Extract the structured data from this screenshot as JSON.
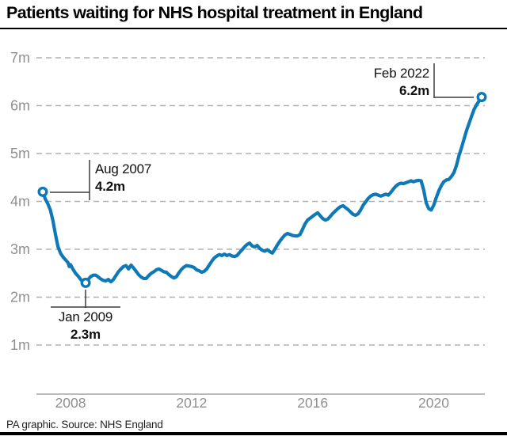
{
  "header": {
    "title": "Patients waiting for NHS hospital treatment in England"
  },
  "footer": {
    "credit": "PA graphic. Source: NHS England"
  },
  "chart_data": {
    "type": "line",
    "title": "Patients waiting for NHS hospital treatment in England",
    "series_name": "Patients waiting for NHS hospital treatment (millions)",
    "unit": "millions of patients",
    "xlabel": "",
    "ylabel": "",
    "grid": true,
    "legend": false,
    "x_domain": [
      2007.583,
      2022.083
    ],
    "y_domain": [
      1,
      7
    ],
    "colors": {
      "line": "#0e79b6",
      "grid": "#b0b0b0",
      "axis": "#a6a6a6",
      "tick_text": "#8f8f8f",
      "annotation_line": "#3c3c3c"
    },
    "y_ticks": [
      {
        "label": "7m",
        "value": 7
      },
      {
        "label": "6m",
        "value": 6
      },
      {
        "label": "5m",
        "value": 5
      },
      {
        "label": "4m",
        "value": 4
      },
      {
        "label": "3m",
        "value": 3
      },
      {
        "label": "2m",
        "value": 2
      },
      {
        "label": "1m",
        "value": 1
      }
    ],
    "x_ticks": [
      {
        "label": "2008",
        "t": 2008.5
      },
      {
        "label": "2012",
        "t": 2012.5
      },
      {
        "label": "2016",
        "t": 2016.5
      },
      {
        "label": "2020",
        "t": 2020.5
      }
    ],
    "annotations": [
      {
        "id": "aug-2007",
        "label": "Aug 2007",
        "value_label": "4.2m",
        "t": 2007.583,
        "value": 4.2
      },
      {
        "id": "jan-2009",
        "label": "Jan 2009",
        "value_label": "2.3m",
        "t": 2009.0,
        "value": 2.3
      },
      {
        "id": "feb-2022",
        "label": "Feb 2022",
        "value_label": "6.2m",
        "t": 2022.083,
        "value": 6.18
      }
    ],
    "points": [
      [
        2007.583,
        4.2
      ],
      [
        2007.667,
        4.05
      ],
      [
        2007.75,
        3.95
      ],
      [
        2007.833,
        3.82
      ],
      [
        2007.917,
        3.6
      ],
      [
        2008.0,
        3.32
      ],
      [
        2008.083,
        3.06
      ],
      [
        2008.167,
        2.92
      ],
      [
        2008.25,
        2.84
      ],
      [
        2008.333,
        2.78
      ],
      [
        2008.417,
        2.72
      ],
      [
        2008.458,
        2.64
      ],
      [
        2008.5,
        2.68
      ],
      [
        2008.583,
        2.58
      ],
      [
        2008.667,
        2.5
      ],
      [
        2008.75,
        2.44
      ],
      [
        2008.833,
        2.37
      ],
      [
        2008.917,
        2.32
      ],
      [
        2009.0,
        2.3
      ],
      [
        2009.083,
        2.37
      ],
      [
        2009.167,
        2.43
      ],
      [
        2009.25,
        2.46
      ],
      [
        2009.333,
        2.46
      ],
      [
        2009.417,
        2.42
      ],
      [
        2009.5,
        2.38
      ],
      [
        2009.583,
        2.35
      ],
      [
        2009.667,
        2.34
      ],
      [
        2009.75,
        2.37
      ],
      [
        2009.833,
        2.32
      ],
      [
        2009.917,
        2.37
      ],
      [
        2010.0,
        2.45
      ],
      [
        2010.083,
        2.53
      ],
      [
        2010.167,
        2.59
      ],
      [
        2010.25,
        2.64
      ],
      [
        2010.333,
        2.66
      ],
      [
        2010.417,
        2.59
      ],
      [
        2010.5,
        2.67
      ],
      [
        2010.583,
        2.61
      ],
      [
        2010.667,
        2.54
      ],
      [
        2010.75,
        2.47
      ],
      [
        2010.833,
        2.42
      ],
      [
        2010.917,
        2.39
      ],
      [
        2011.0,
        2.39
      ],
      [
        2011.083,
        2.45
      ],
      [
        2011.167,
        2.5
      ],
      [
        2011.25,
        2.53
      ],
      [
        2011.333,
        2.57
      ],
      [
        2011.417,
        2.59
      ],
      [
        2011.5,
        2.56
      ],
      [
        2011.583,
        2.53
      ],
      [
        2011.667,
        2.52
      ],
      [
        2011.75,
        2.47
      ],
      [
        2011.833,
        2.43
      ],
      [
        2011.917,
        2.4
      ],
      [
        2012.0,
        2.43
      ],
      [
        2012.083,
        2.51
      ],
      [
        2012.167,
        2.58
      ],
      [
        2012.25,
        2.63
      ],
      [
        2012.333,
        2.66
      ],
      [
        2012.417,
        2.65
      ],
      [
        2012.5,
        2.64
      ],
      [
        2012.583,
        2.62
      ],
      [
        2012.667,
        2.57
      ],
      [
        2012.75,
        2.55
      ],
      [
        2012.833,
        2.52
      ],
      [
        2012.917,
        2.54
      ],
      [
        2013.0,
        2.59
      ],
      [
        2013.083,
        2.67
      ],
      [
        2013.167,
        2.75
      ],
      [
        2013.25,
        2.82
      ],
      [
        2013.333,
        2.86
      ],
      [
        2013.417,
        2.89
      ],
      [
        2013.5,
        2.87
      ],
      [
        2013.583,
        2.9
      ],
      [
        2013.667,
        2.87
      ],
      [
        2013.75,
        2.89
      ],
      [
        2013.833,
        2.86
      ],
      [
        2013.917,
        2.85
      ],
      [
        2014.0,
        2.87
      ],
      [
        2014.083,
        2.93
      ],
      [
        2014.167,
        2.99
      ],
      [
        2014.25,
        3.05
      ],
      [
        2014.333,
        3.1
      ],
      [
        2014.417,
        3.13
      ],
      [
        2014.5,
        3.07
      ],
      [
        2014.583,
        3.05
      ],
      [
        2014.667,
        3.08
      ],
      [
        2014.75,
        3.02
      ],
      [
        2014.833,
        2.98
      ],
      [
        2014.917,
        2.96
      ],
      [
        2015.0,
        2.99
      ],
      [
        2015.083,
        2.95
      ],
      [
        2015.167,
        2.92
      ],
      [
        2015.25,
        3.0
      ],
      [
        2015.333,
        3.09
      ],
      [
        2015.417,
        3.17
      ],
      [
        2015.5,
        3.24
      ],
      [
        2015.583,
        3.3
      ],
      [
        2015.667,
        3.33
      ],
      [
        2015.75,
        3.31
      ],
      [
        2015.833,
        3.29
      ],
      [
        2015.917,
        3.28
      ],
      [
        2016.0,
        3.28
      ],
      [
        2016.083,
        3.31
      ],
      [
        2016.167,
        3.42
      ],
      [
        2016.25,
        3.53
      ],
      [
        2016.333,
        3.61
      ],
      [
        2016.417,
        3.65
      ],
      [
        2016.5,
        3.69
      ],
      [
        2016.583,
        3.73
      ],
      [
        2016.667,
        3.76
      ],
      [
        2016.75,
        3.7
      ],
      [
        2016.833,
        3.64
      ],
      [
        2016.917,
        3.61
      ],
      [
        2017.0,
        3.63
      ],
      [
        2017.083,
        3.69
      ],
      [
        2017.167,
        3.75
      ],
      [
        2017.25,
        3.8
      ],
      [
        2017.333,
        3.85
      ],
      [
        2017.417,
        3.89
      ],
      [
        2017.5,
        3.91
      ],
      [
        2017.583,
        3.87
      ],
      [
        2017.667,
        3.83
      ],
      [
        2017.75,
        3.78
      ],
      [
        2017.833,
        3.73
      ],
      [
        2017.917,
        3.71
      ],
      [
        2018.0,
        3.74
      ],
      [
        2018.083,
        3.82
      ],
      [
        2018.167,
        3.92
      ],
      [
        2018.25,
        3.99
      ],
      [
        2018.333,
        4.06
      ],
      [
        2018.417,
        4.11
      ],
      [
        2018.5,
        4.14
      ],
      [
        2018.583,
        4.15
      ],
      [
        2018.667,
        4.13
      ],
      [
        2018.75,
        4.11
      ],
      [
        2018.833,
        4.13
      ],
      [
        2018.917,
        4.15
      ],
      [
        2019.0,
        4.13
      ],
      [
        2019.083,
        4.19
      ],
      [
        2019.167,
        4.26
      ],
      [
        2019.25,
        4.32
      ],
      [
        2019.333,
        4.36
      ],
      [
        2019.417,
        4.38
      ],
      [
        2019.5,
        4.37
      ],
      [
        2019.583,
        4.39
      ],
      [
        2019.667,
        4.41
      ],
      [
        2019.75,
        4.43
      ],
      [
        2019.833,
        4.41
      ],
      [
        2019.917,
        4.43
      ],
      [
        2020.0,
        4.44
      ],
      [
        2020.083,
        4.43
      ],
      [
        2020.167,
        4.24
      ],
      [
        2020.25,
        3.97
      ],
      [
        2020.333,
        3.85
      ],
      [
        2020.417,
        3.82
      ],
      [
        2020.5,
        3.92
      ],
      [
        2020.583,
        4.08
      ],
      [
        2020.667,
        4.22
      ],
      [
        2020.75,
        4.33
      ],
      [
        2020.833,
        4.41
      ],
      [
        2020.917,
        4.45
      ],
      [
        2021.0,
        4.46
      ],
      [
        2021.083,
        4.52
      ],
      [
        2021.167,
        4.6
      ],
      [
        2021.25,
        4.75
      ],
      [
        2021.333,
        4.95
      ],
      [
        2021.417,
        5.12
      ],
      [
        2021.5,
        5.3
      ],
      [
        2021.583,
        5.48
      ],
      [
        2021.667,
        5.63
      ],
      [
        2021.75,
        5.78
      ],
      [
        2021.833,
        5.92
      ],
      [
        2021.917,
        6.02
      ],
      [
        2022.0,
        6.1
      ],
      [
        2022.083,
        6.18
      ]
    ]
  }
}
